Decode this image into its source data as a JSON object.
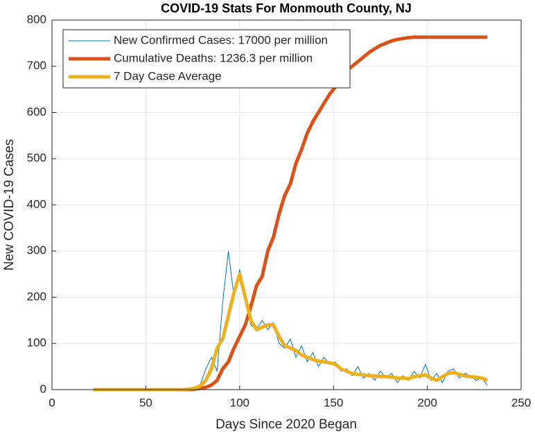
{
  "chart_data": {
    "type": "line",
    "title": "COVID-19 Stats For Monmouth County, NJ",
    "x_label": "Days Since 2020 Began",
    "y_label": "New COVID-19 Cases",
    "x": [
      22,
      25,
      28,
      31,
      34,
      37,
      40,
      43,
      46,
      49,
      52,
      55,
      58,
      61,
      64,
      67,
      70,
      73,
      76,
      79,
      82,
      85,
      88,
      91,
      94,
      97,
      100,
      103,
      106,
      109,
      112,
      115,
      118,
      121,
      124,
      127,
      130,
      133,
      136,
      139,
      142,
      145,
      148,
      151,
      154,
      157,
      160,
      163,
      166,
      169,
      172,
      175,
      178,
      181,
      184,
      187,
      190,
      193,
      196,
      199,
      202,
      205,
      208,
      211,
      214,
      217,
      220,
      223,
      226,
      229,
      232
    ],
    "series": [
      {
        "name": "New Confirmed Cases: 17000 per million",
        "color": "#0072bd",
        "line_width": 1,
        "values": [
          0,
          0,
          0,
          0,
          0,
          0,
          0,
          0,
          0,
          0,
          0,
          0,
          0,
          0,
          0,
          0,
          0,
          2,
          5,
          10,
          45,
          70,
          40,
          190,
          300,
          200,
          260,
          190,
          140,
          130,
          150,
          130,
          145,
          100,
          90,
          110,
          70,
          95,
          60,
          80,
          50,
          70,
          55,
          60,
          40,
          45,
          30,
          50,
          25,
          35,
          20,
          40,
          25,
          35,
          15,
          30,
          20,
          40,
          25,
          55,
          20,
          35,
          15,
          40,
          45,
          25,
          35,
          30,
          20,
          25,
          10
        ]
      },
      {
        "name": "Cumulative Deaths: 1236.3 per million",
        "color": "#d95319",
        "line_width": 5,
        "values": [
          0,
          0,
          0,
          0,
          0,
          0,
          0,
          0,
          0,
          0,
          0,
          0,
          0,
          0,
          0,
          0,
          0,
          0,
          1,
          3,
          5,
          10,
          20,
          45,
          60,
          90,
          115,
          140,
          180,
          225,
          245,
          300,
          330,
          380,
          420,
          445,
          490,
          520,
          555,
          580,
          600,
          620,
          640,
          655,
          670,
          690,
          700,
          710,
          720,
          730,
          738,
          745,
          750,
          755,
          758,
          760,
          762,
          763,
          763,
          763,
          763,
          763,
          763,
          763,
          763,
          763,
          763,
          763,
          763,
          763,
          763
        ]
      },
      {
        "name": "7 Day Case Average",
        "color": "#edb120",
        "line_width": 5,
        "values": [
          0,
          0,
          0,
          0,
          0,
          0,
          0,
          0,
          0,
          0,
          0,
          0,
          0,
          0,
          0,
          0,
          0,
          1,
          3,
          8,
          20,
          45,
          90,
          110,
          160,
          210,
          250,
          200,
          150,
          130,
          135,
          140,
          140,
          115,
          95,
          90,
          85,
          75,
          70,
          65,
          62,
          60,
          58,
          55,
          45,
          40,
          35,
          33,
          32,
          30,
          30,
          28,
          28,
          27,
          25,
          25,
          24,
          28,
          30,
          32,
          25,
          20,
          28,
          35,
          37,
          33,
          30,
          28,
          27,
          25,
          20
        ]
      }
    ],
    "xlim": [
      0,
      250
    ],
    "xticks": [
      0,
      50,
      100,
      150,
      200,
      250
    ],
    "ylim": [
      0,
      800
    ],
    "yticks": [
      0,
      100,
      200,
      300,
      400,
      500,
      600,
      700,
      800
    ],
    "grid": true,
    "legend": "upper-left"
  }
}
